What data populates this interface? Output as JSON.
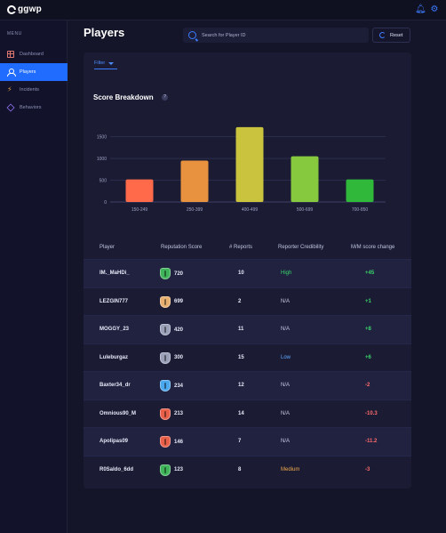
{
  "app": {
    "logo_text": "ggwp"
  },
  "sidebar": {
    "menu_label": "MENU",
    "items": [
      {
        "label": "Dashboard",
        "icon": "dashboard-grid-icon",
        "active": false
      },
      {
        "label": "Players",
        "icon": "user-icon",
        "active": true
      },
      {
        "label": "Incidents",
        "icon": "bolt-icon",
        "active": false
      },
      {
        "label": "Behaviors",
        "icon": "cube-icon",
        "active": false
      }
    ]
  },
  "header": {
    "title": "Players",
    "search_placeholder": "Search for Player ID",
    "reset_label": "Reset"
  },
  "filter": {
    "label": "Filter"
  },
  "score_breakdown": {
    "title": "Score Breakdown",
    "help": "?"
  },
  "chart_data": {
    "type": "bar",
    "title": "Score Breakdown",
    "categories": [
      "150-249",
      "250-399",
      "400-499",
      "500-699",
      "700-850"
    ],
    "values": [
      520,
      950,
      1720,
      1050,
      520
    ],
    "colors": [
      "#ff6b4a",
      "#e8913e",
      "#c9c33e",
      "#86c93e",
      "#2fb83a"
    ],
    "yticks": [
      0,
      500,
      1000,
      1500
    ],
    "ylim": [
      0,
      1800
    ],
    "grid": true
  },
  "table": {
    "columns": [
      "Player",
      "Reputation Score",
      "# Reports",
      "Reporter Credibility",
      "M/M score change"
    ],
    "rows": [
      {
        "player": "IM._MaHDi_",
        "score": "720",
        "shield_color": "#3fb45a",
        "reports": "10",
        "credibility": "High",
        "credibility_color": "#39d56a",
        "change": "+45",
        "change_color": "#39d56a"
      },
      {
        "player": "LEZGIN777",
        "score": "699",
        "shield_color": "#e8b070",
        "reports": "2",
        "credibility": "N/A",
        "credibility_color": "#c6c9e0",
        "change": "+1",
        "change_color": "#39d56a"
      },
      {
        "player": "MOGGY_23",
        "score": "420",
        "shield_color": "#9aa0b8",
        "reports": "11",
        "credibility": "N/A",
        "credibility_color": "#c6c9e0",
        "change": "+8",
        "change_color": "#39d56a"
      },
      {
        "player": "Luleburgaz",
        "score": "300",
        "shield_color": "#9aa0b8",
        "reports": "15",
        "credibility": "Low",
        "credibility_color": "#5fa8ff",
        "change": "+6",
        "change_color": "#39d56a"
      },
      {
        "player": "Baxter34_dr",
        "score": "234",
        "shield_color": "#4aa8ee",
        "reports": "12",
        "credibility": "N/A",
        "credibility_color": "#c6c9e0",
        "change": "-2",
        "change_color": "#ff6b6b"
      },
      {
        "player": "Omnious90_M",
        "score": "213",
        "shield_color": "#e8604a",
        "reports": "14",
        "credibility": "N/A",
        "credibility_color": "#c6c9e0",
        "change": "-10.3",
        "change_color": "#ff6b6b"
      },
      {
        "player": "Apolipas09",
        "score": "146",
        "shield_color": "#e8604a",
        "reports": "7",
        "credibility": "N/A",
        "credibility_color": "#c6c9e0",
        "change": "-11.2",
        "change_color": "#ff6b6b"
      },
      {
        "player": "R0Saldo_6dd",
        "score": "123",
        "shield_color": "#3fb45a",
        "reports": "8",
        "credibility": "Medium",
        "credibility_color": "#f0a94a",
        "change": "-3",
        "change_color": "#ff6b6b"
      }
    ]
  }
}
